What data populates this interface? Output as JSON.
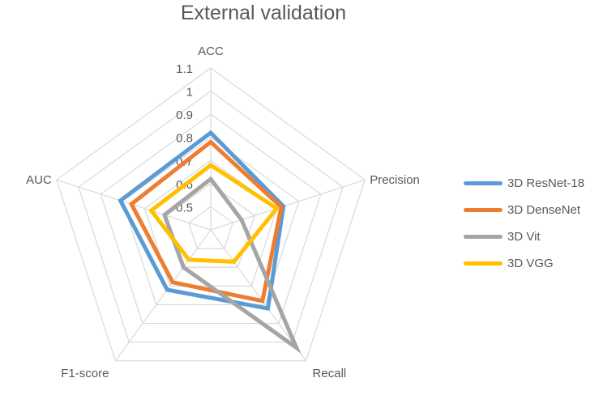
{
  "chart_data": {
    "type": "radar",
    "title": "External validation",
    "axes": [
      "ACC",
      "Precision",
      "Recall",
      "F1-score",
      "AUC"
    ],
    "rlim": [
      0.4,
      1.1
    ],
    "ticks": [
      0.5,
      0.6,
      0.7,
      0.8,
      0.9,
      1,
      1.1
    ],
    "tick_labels": [
      "0.5",
      "0.6",
      "0.7",
      "0.8",
      "0.9",
      "1",
      "1.1"
    ],
    "series": [
      {
        "name": "3D ResNet-18",
        "color": "#5b9bd5",
        "values": [
          0.82,
          0.73,
          0.82,
          0.72,
          0.81
        ]
      },
      {
        "name": "3D DenseNet",
        "color": "#ed7d31",
        "values": [
          0.78,
          0.72,
          0.78,
          0.68,
          0.76
        ]
      },
      {
        "name": "3D Vit",
        "color": "#a5a5a5",
        "values": [
          0.62,
          0.54,
          1.03,
          0.6,
          0.61
        ]
      },
      {
        "name": "3D VGG",
        "color": "#ffc000",
        "values": [
          0.68,
          0.7,
          0.57,
          0.56,
          0.67
        ]
      }
    ],
    "legend": "right"
  }
}
